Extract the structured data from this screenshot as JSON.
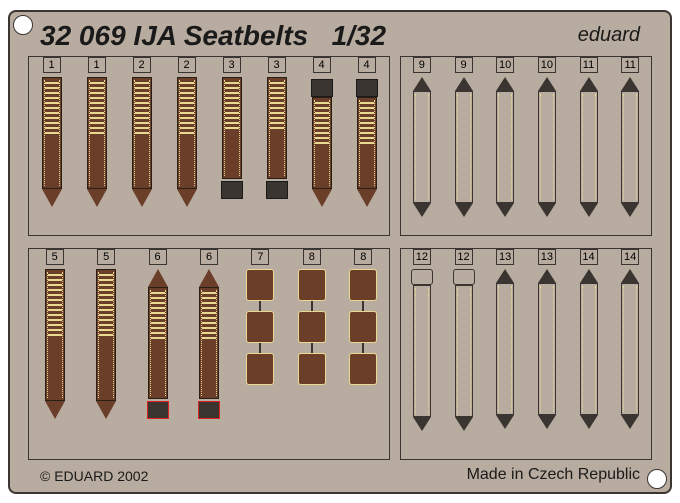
{
  "product_code": "32 069",
  "product_name": "IJA Seatbelts",
  "scale": "1/32",
  "brand": "eduard",
  "copyright": "© EDUARD 2002",
  "made_in": "Made in Czech Republic",
  "colors": {
    "fret": "#b8ab9f",
    "belt": "#6b3e2a",
    "stitch": "#e8d890",
    "frame": "#3a3530",
    "highlight": "#d22"
  },
  "p1": {
    "labels": [
      "1",
      "1",
      "2",
      "2",
      "3",
      "3",
      "4",
      "4"
    ]
  },
  "p2": {
    "labels": [
      "9",
      "9",
      "10",
      "10",
      "11",
      "11"
    ]
  },
  "p3": {
    "labels": [
      "5",
      "5",
      "6",
      "6",
      "7",
      "8",
      "8"
    ]
  },
  "p4": {
    "labels": [
      "12",
      "12",
      "13",
      "13",
      "14",
      "14"
    ]
  }
}
